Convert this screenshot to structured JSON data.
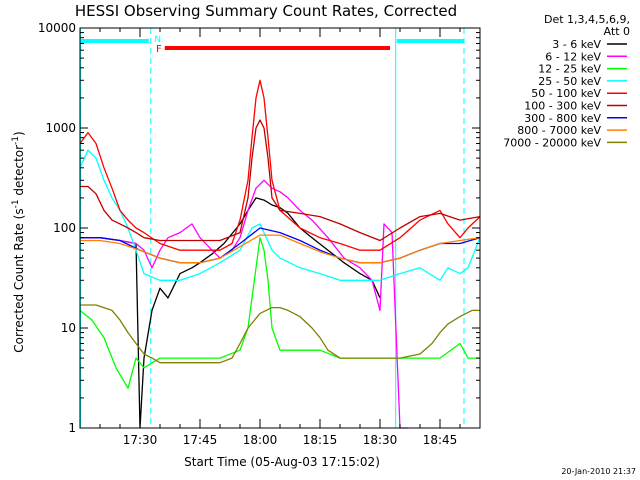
{
  "chart_data": {
    "type": "line",
    "title": "HESSI Observing Summary Count Rates, Corrected",
    "xlabel": "Start Time (05-Aug-03 17:15:02)",
    "ylabel_main": "Corrected Count Rate (s",
    "ylabel_sup1": "-1",
    "ylabel_mid": " detector",
    "ylabel_sup2": "-1",
    "ylabel_end": ")",
    "yscale": "log",
    "ylim": [
      1,
      10000
    ],
    "xlim_minutes": [
      0,
      100
    ],
    "x_unit": "minutes since 17:15:02",
    "x_ticks": [
      {
        "label": "17:30",
        "value": 15
      },
      {
        "label": "17:45",
        "value": 30
      },
      {
        "label": "18:00",
        "value": 45
      },
      {
        "label": "18:15",
        "value": 60
      },
      {
        "label": "18:30",
        "value": 75
      },
      {
        "label": "18:45",
        "value": 90
      }
    ],
    "y_ticks": [
      {
        "label": "1",
        "value": 1
      },
      {
        "label": "10",
        "value": 10
      },
      {
        "label": "100",
        "value": 100
      },
      {
        "label": "1000",
        "value": 1000
      },
      {
        "label": "10000",
        "value": 10000
      }
    ],
    "legend_header": [
      "Det 1,3,4,5,6,9,",
      "Att 0"
    ],
    "legend_position": "right",
    "timestamp": "20-Jan-2010 21:37",
    "flags": [
      {
        "label": "N",
        "color": "#00ffff"
      },
      {
        "label": "F",
        "color": "#ff0000"
      }
    ],
    "night_color": "#00ffff",
    "flare_color": "#ff0000",
    "series": [
      {
        "name": "3 - 6 keV",
        "color": "#000000",
        "x": [
          0,
          5,
          10,
          14,
          15,
          16,
          18,
          20,
          22,
          25,
          28,
          30,
          33,
          36,
          40,
          42,
          44,
          46,
          48,
          50,
          52,
          55,
          58,
          62,
          66,
          70,
          73,
          75
        ],
        "y": [
          80,
          80,
          75,
          70,
          1,
          5,
          15,
          25,
          20,
          35,
          40,
          45,
          55,
          70,
          110,
          150,
          200,
          190,
          170,
          160,
          140,
          100,
          80,
          60,
          45,
          35,
          30,
          20
        ]
      },
      {
        "name": "6 - 12 keV",
        "color": "#ff00ff",
        "x": [
          0,
          5,
          10,
          14,
          16,
          18,
          20,
          22,
          25,
          28,
          30,
          33,
          35,
          38,
          40,
          42,
          44,
          46,
          48,
          50,
          52,
          55,
          58,
          62,
          66,
          70,
          73,
          75,
          76,
          78,
          80,
          82
        ],
        "y": [
          80,
          80,
          75,
          70,
          60,
          40,
          60,
          80,
          90,
          110,
          80,
          60,
          50,
          60,
          80,
          150,
          250,
          300,
          250,
          230,
          200,
          150,
          120,
          80,
          50,
          40,
          30,
          15,
          110,
          90,
          1,
          1
        ]
      },
      {
        "name": "12 - 25 keV",
        "color": "#00ff00",
        "x": [
          0,
          3,
          6,
          9,
          12,
          14,
          16,
          20,
          25,
          30,
          35,
          40,
          42,
          44,
          45,
          46,
          47,
          48,
          50,
          55,
          60,
          65,
          70,
          75,
          80,
          85,
          90,
          95,
          97,
          100
        ],
        "y": [
          15,
          12,
          8,
          4,
          2.5,
          5,
          4,
          5,
          5,
          5,
          5,
          6,
          10,
          40,
          80,
          60,
          30,
          10,
          6,
          6,
          6,
          5,
          5,
          5,
          5,
          5,
          5,
          7,
          5,
          5
        ]
      },
      {
        "name": "25 - 50 keV",
        "color": "#00ffff",
        "x": [
          0,
          2,
          4,
          6,
          8,
          10,
          12,
          14,
          16,
          20,
          25,
          30,
          35,
          40,
          43,
          45,
          46,
          48,
          50,
          55,
          60,
          65,
          70,
          75,
          80,
          85,
          90,
          92,
          95,
          97,
          100
        ],
        "y": [
          400,
          600,
          500,
          300,
          200,
          150,
          100,
          60,
          35,
          30,
          30,
          35,
          45,
          60,
          100,
          110,
          90,
          60,
          50,
          40,
          35,
          30,
          30,
          30,
          35,
          40,
          30,
          40,
          35,
          40,
          80
        ]
      },
      {
        "name": "50 - 100 keV",
        "color": "#ff0000",
        "x": [
          0,
          2,
          4,
          6,
          8,
          10,
          12,
          14,
          16,
          20,
          25,
          30,
          35,
          38,
          40,
          42,
          43,
          44,
          45,
          46,
          47,
          48,
          50,
          55,
          60,
          65,
          70,
          75,
          80,
          85,
          90,
          92,
          95,
          97,
          100
        ],
        "y": [
          700,
          900,
          700,
          400,
          250,
          150,
          120,
          100,
          90,
          70,
          60,
          60,
          60,
          70,
          120,
          300,
          800,
          2000,
          3000,
          2000,
          800,
          300,
          150,
          100,
          80,
          70,
          60,
          60,
          80,
          120,
          150,
          110,
          80,
          100,
          130
        ]
      },
      {
        "name": "100 - 300 keV",
        "color": "#c00000",
        "x": [
          0,
          2,
          4,
          6,
          8,
          10,
          12,
          14,
          16,
          20,
          25,
          30,
          35,
          40,
          42,
          43,
          44,
          45,
          46,
          47,
          48,
          50,
          55,
          60,
          65,
          70,
          75,
          80,
          85,
          90,
          95,
          100
        ],
        "y": [
          260,
          260,
          220,
          150,
          120,
          110,
          100,
          90,
          80,
          75,
          75,
          75,
          75,
          90,
          200,
          500,
          1000,
          1200,
          1000,
          500,
          200,
          150,
          140,
          130,
          110,
          90,
          75,
          100,
          130,
          140,
          120,
          130
        ]
      },
      {
        "name": "300 - 800 keV",
        "color": "#0000ff",
        "x": [
          0,
          5,
          10,
          15,
          20,
          25,
          30,
          35,
          40,
          45,
          50,
          55,
          60,
          65,
          70,
          75,
          80,
          85,
          90,
          95,
          100
        ],
        "y": [
          80,
          80,
          75,
          60,
          50,
          45,
          45,
          50,
          70,
          100,
          90,
          75,
          60,
          50,
          45,
          45,
          50,
          60,
          70,
          70,
          80
        ]
      },
      {
        "name": "800 - 7000 keV",
        "color": "#ff8000",
        "x": [
          0,
          5,
          10,
          15,
          20,
          25,
          30,
          35,
          40,
          45,
          50,
          55,
          60,
          65,
          70,
          75,
          80,
          85,
          90,
          95,
          100
        ],
        "y": [
          75,
          75,
          70,
          60,
          50,
          45,
          45,
          50,
          65,
          85,
          85,
          70,
          58,
          50,
          45,
          45,
          50,
          60,
          70,
          75,
          80
        ]
      },
      {
        "name": "7000 - 20000 keV",
        "color": "#808000",
        "x": [
          0,
          4,
          8,
          10,
          12,
          14,
          16,
          18,
          20,
          25,
          30,
          35,
          38,
          40,
          42,
          45,
          48,
          50,
          52,
          55,
          58,
          60,
          62,
          65,
          70,
          75,
          80,
          85,
          88,
          90,
          92,
          95,
          98,
          100
        ],
        "y": [
          17,
          17,
          15,
          12,
          9,
          7,
          5.5,
          5,
          4.5,
          4.5,
          4.5,
          4.5,
          5,
          7,
          10,
          14,
          16,
          16,
          15,
          13,
          10,
          8,
          6,
          5,
          5,
          5,
          5,
          5.5,
          7,
          9,
          11,
          13,
          15,
          15
        ]
      }
    ]
  }
}
